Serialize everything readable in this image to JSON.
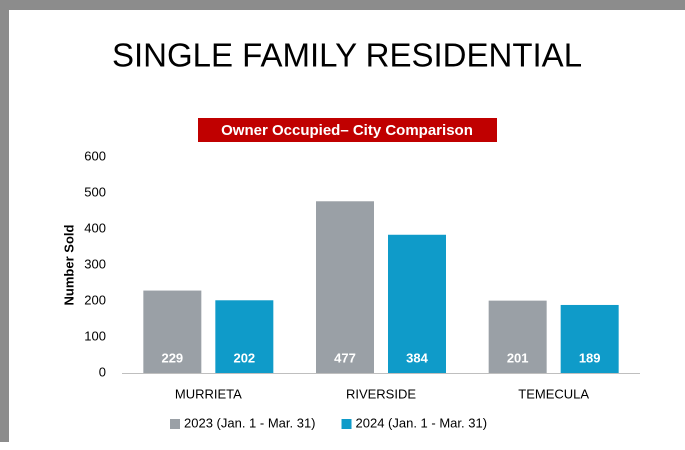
{
  "chart_data": {
    "type": "bar",
    "title": "SINGLE FAMILY RESIDENTIAL",
    "subtitle": "Owner Occupied– City Comparison",
    "y_label": "Number Sold",
    "categories": [
      "MURRIETA",
      "RIVERSIDE",
      "TEMECULA"
    ],
    "series": [
      {
        "name": "2023 (Jan. 1 - Mar. 31)",
        "color": "#9aa0a6",
        "values": [
          229,
          477,
          201
        ]
      },
      {
        "name": "2024 (Jan. 1 - Mar. 31)",
        "color": "#0f9bc9",
        "values": [
          202,
          384,
          189
        ]
      }
    ],
    "ylim": [
      0,
      600
    ],
    "yticks": [
      0,
      100,
      200,
      300,
      400,
      500,
      600
    ],
    "grid": false,
    "legend": "bottom"
  }
}
